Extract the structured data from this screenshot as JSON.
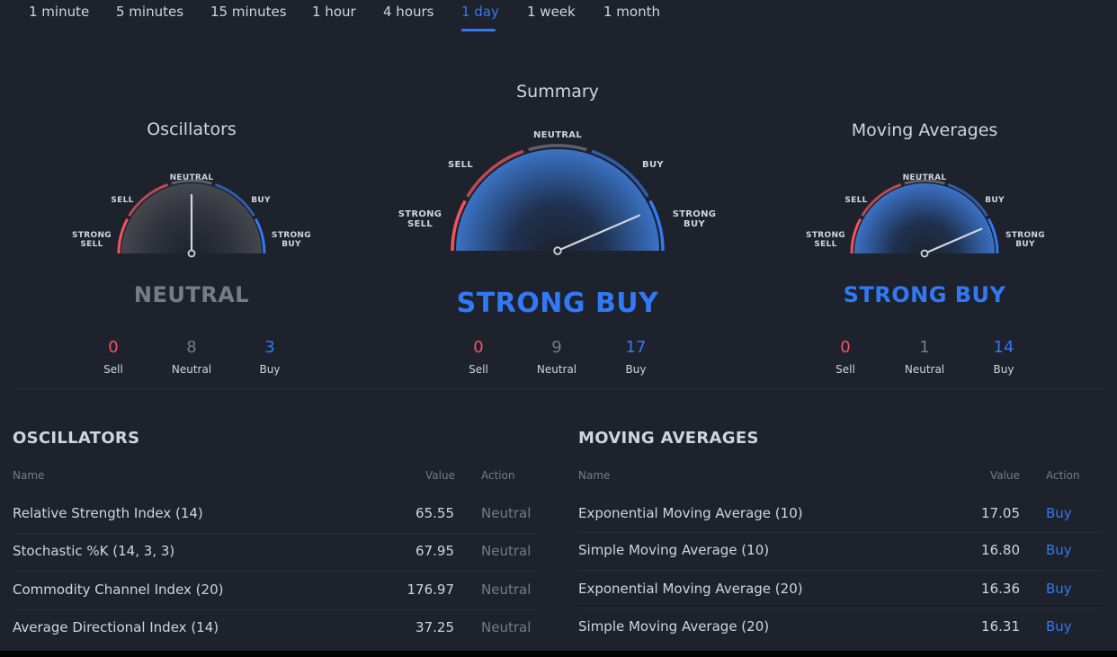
{
  "colors": {
    "background": "#1e222d",
    "sell": "#f7525f",
    "neutral": "#787b86",
    "buy": "#3179f5",
    "text": "#d1d4dc"
  },
  "timeframes": {
    "items": [
      "1 minute",
      "5 minutes",
      "15 minutes",
      "1 hour",
      "4 hours",
      "1 day",
      "1 week",
      "1 month"
    ],
    "selected": "1 day"
  },
  "gauges": {
    "oscillators": {
      "title": "Oscillators",
      "labels": {
        "strong_sell_1": "STRONG",
        "strong_sell_2": "SELL",
        "sell": "SELL",
        "neutral": "NEUTRAL",
        "buy": "BUY",
        "strong_buy_1": "STRONG",
        "strong_buy_2": "BUY"
      },
      "verdict": "NEUTRAL",
      "needle_level": 0.5,
      "counts": {
        "sell": "0",
        "neutral": "8",
        "buy": "3"
      },
      "count_labels": {
        "sell": "Sell",
        "neutral": "Neutral",
        "buy": "Buy"
      }
    },
    "summary": {
      "title": "Summary",
      "labels": {
        "strong_sell_1": "STRONG",
        "strong_sell_2": "SELL",
        "sell": "SELL",
        "neutral": "NEUTRAL",
        "buy": "BUY",
        "strong_buy_1": "STRONG",
        "strong_buy_2": "BUY"
      },
      "verdict": "STRONG BUY",
      "needle_level": 0.87,
      "counts": {
        "sell": "0",
        "neutral": "9",
        "buy": "17"
      },
      "count_labels": {
        "sell": "Sell",
        "neutral": "Neutral",
        "buy": "Buy"
      }
    },
    "moving_averages": {
      "title": "Moving Averages",
      "labels": {
        "strong_sell_1": "STRONG",
        "strong_sell_2": "SELL",
        "sell": "SELL",
        "neutral": "NEUTRAL",
        "buy": "BUY",
        "strong_buy_1": "STRONG",
        "strong_buy_2": "BUY"
      },
      "verdict": "STRONG BUY",
      "needle_level": 0.87,
      "counts": {
        "sell": "0",
        "neutral": "1",
        "buy": "14"
      },
      "count_labels": {
        "sell": "Sell",
        "neutral": "Neutral",
        "buy": "Buy"
      }
    }
  },
  "oscillators_table": {
    "title": "OSCILLATORS",
    "headers": {
      "name": "Name",
      "value": "Value",
      "action": "Action"
    },
    "rows": [
      {
        "name": "Relative Strength Index (14)",
        "value": "65.55",
        "action": "Neutral"
      },
      {
        "name": "Stochastic %K (14, 3, 3)",
        "value": "67.95",
        "action": "Neutral"
      },
      {
        "name": "Commodity Channel Index (20)",
        "value": "176.97",
        "action": "Neutral"
      },
      {
        "name": "Average Directional Index (14)",
        "value": "37.25",
        "action": "Neutral"
      }
    ]
  },
  "moving_averages_table": {
    "title": "MOVING AVERAGES",
    "headers": {
      "name": "Name",
      "value": "Value",
      "action": "Action"
    },
    "rows": [
      {
        "name": "Exponential Moving Average (10)",
        "value": "17.05",
        "action": "Buy"
      },
      {
        "name": "Simple Moving Average (10)",
        "value": "16.80",
        "action": "Buy"
      },
      {
        "name": "Exponential Moving Average (20)",
        "value": "16.36",
        "action": "Buy"
      },
      {
        "name": "Simple Moving Average (20)",
        "value": "16.31",
        "action": "Buy"
      }
    ]
  }
}
